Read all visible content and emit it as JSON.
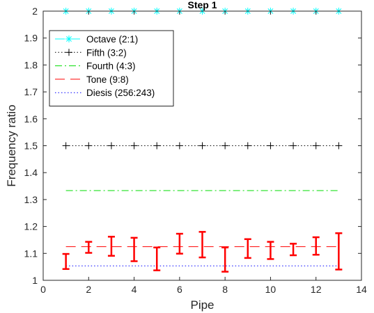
{
  "chart_data": {
    "type": "line",
    "title": "Step 1",
    "xlabel": "Pipe",
    "ylabel": "Frequency ratio",
    "xlim": [
      0,
      14
    ],
    "ylim": [
      1,
      2
    ],
    "xticks": [
      0,
      2,
      4,
      6,
      8,
      10,
      12,
      14
    ],
    "yticks": [
      1,
      1.1,
      1.2,
      1.3,
      1.4,
      1.5,
      1.6,
      1.7,
      1.8,
      1.9,
      2
    ],
    "grid": false,
    "legend_position": "top-left",
    "x": [
      1,
      2,
      3,
      4,
      5,
      6,
      7,
      8,
      9,
      10,
      11,
      12,
      13
    ],
    "reference_lines": [
      {
        "name": "Octave (2:1)",
        "value": 2.0,
        "color": "#00ffff",
        "style": "dash",
        "marker": "asterisk"
      },
      {
        "name": "Fifth (3:2)",
        "value": 1.5,
        "color": "#000000",
        "style": "dot",
        "marker": "plus"
      },
      {
        "name": "Fourth (4:3)",
        "value": 1.3333,
        "color": "#00dd00",
        "style": "dashdot",
        "marker": "none"
      },
      {
        "name": "Tone (9:8)",
        "value": 1.125,
        "color": "#ff0000",
        "style": "dash",
        "marker": "none"
      },
      {
        "name": "Diesis (256:243)",
        "value": 1.0535,
        "color": "#0000ff",
        "style": "dot",
        "marker": "none"
      }
    ],
    "errorbars": {
      "color": "#ff0000",
      "lower": [
        1.042,
        1.102,
        1.091,
        1.071,
        1.037,
        1.099,
        1.085,
        1.032,
        1.083,
        1.079,
        1.093,
        1.095,
        1.04
      ],
      "upper": [
        1.098,
        1.143,
        1.162,
        1.158,
        1.122,
        1.173,
        1.18,
        1.122,
        1.153,
        1.143,
        1.136,
        1.16,
        1.175
      ]
    }
  }
}
